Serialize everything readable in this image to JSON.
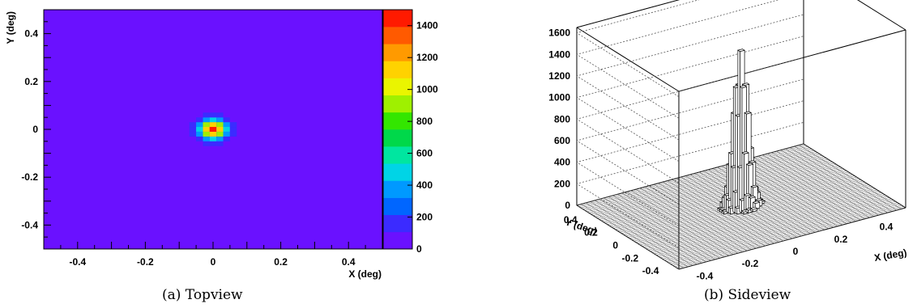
{
  "chart_data": [
    {
      "type": "heatmap",
      "title": "",
      "xlabel": "X (deg)",
      "ylabel": "Y (deg)",
      "xlim": [
        -0.5,
        0.5
      ],
      "ylim": [
        -0.5,
        0.5
      ],
      "x_ticks": [
        "-0.4",
        "-0.2",
        "0",
        "0.2",
        "0.4"
      ],
      "y_ticks": [
        "-0.4",
        "-0.2",
        "0",
        "0.2",
        "0.4"
      ],
      "colorbar": {
        "range": [
          0,
          1500
        ],
        "ticks": [
          "0",
          "200",
          "400",
          "600",
          "800",
          "1000",
          "1200",
          "1400"
        ]
      },
      "peak": {
        "x": 0.0,
        "y": 0.0,
        "value": 1450
      },
      "background_value": 0
    },
    {
      "type": "lego-3d",
      "title": "",
      "xlabel": "X (deg)",
      "ylabel": "Y (deg)",
      "zlim": [
        0,
        1650
      ],
      "z_ticks": [
        "0",
        "200",
        "400",
        "600",
        "800",
        "1000",
        "1200",
        "1400",
        "1600"
      ],
      "x_ticks": [
        "-0.4",
        "-0.2",
        "0",
        "0.2",
        "0.4"
      ],
      "y_ticks": [
        "0.4",
        "0.2",
        "0",
        "-0.2",
        "-0.4"
      ],
      "peak": {
        "x": 0.0,
        "y": 0.0,
        "value": 1450
      }
    }
  ],
  "captions": {
    "a": "(a) Topview",
    "b": "(b) Sideview"
  }
}
